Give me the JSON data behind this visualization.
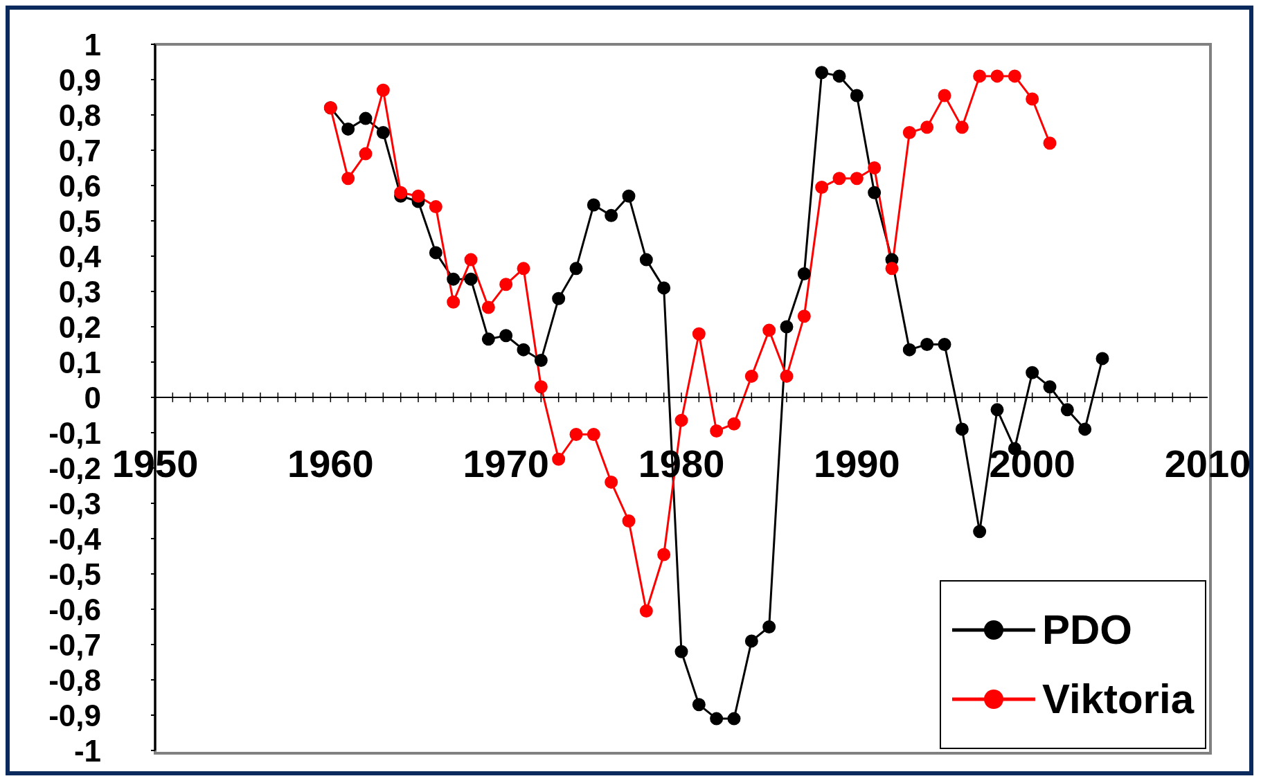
{
  "chart_data": {
    "type": "line",
    "x": [
      1960,
      1961,
      1962,
      1963,
      1964,
      1965,
      1966,
      1967,
      1968,
      1969,
      1970,
      1971,
      1972,
      1973,
      1974,
      1975,
      1976,
      1977,
      1978,
      1979,
      1980,
      1981,
      1982,
      1983,
      1984,
      1985,
      1986,
      1987,
      1988,
      1989,
      1990,
      1991,
      1992,
      1993,
      1994,
      1995,
      1996,
      1997,
      1998,
      1999,
      2000,
      2001,
      2002,
      2003,
      2004
    ],
    "series": [
      {
        "name": "PDO",
        "color": "#000000",
        "values": [
          0.82,
          0.76,
          0.79,
          0.75,
          0.57,
          0.555,
          0.41,
          0.335,
          0.335,
          0.165,
          0.175,
          0.135,
          0.105,
          0.28,
          0.365,
          0.545,
          0.515,
          0.57,
          0.39,
          0.31,
          -0.72,
          -0.87,
          -0.91,
          -0.91,
          -0.69,
          -0.65,
          0.2,
          0.35,
          0.92,
          0.91,
          0.855,
          0.58,
          0.39,
          0.135,
          0.15,
          0.15,
          -0.09,
          -0.38,
          -0.035,
          -0.145,
          0.07,
          0.03,
          -0.035,
          -0.09,
          0.11
        ]
      },
      {
        "name": "Viktoria",
        "color": "#ff0000",
        "values": [
          0.82,
          0.62,
          0.69,
          0.87,
          0.58,
          0.57,
          0.54,
          0.27,
          0.39,
          0.255,
          0.32,
          0.365,
          0.03,
          -0.175,
          -0.105,
          -0.105,
          -0.24,
          -0.35,
          -0.605,
          -0.445,
          -0.065,
          0.18,
          -0.095,
          -0.075,
          0.06,
          0.19,
          0.06,
          0.23,
          0.595,
          0.62,
          0.62,
          0.65,
          0.365,
          0.75,
          0.765,
          0.855,
          0.765,
          0.91,
          0.91,
          0.91,
          0.845,
          0.72,
          null,
          null,
          null
        ]
      }
    ],
    "xlim": [
      1950,
      2010
    ],
    "xticks": [
      1950,
      1960,
      1970,
      1980,
      1990,
      2000,
      2010
    ],
    "ylim": [
      -1,
      1
    ],
    "yticks": [
      {
        "value": -1,
        "label": "-1"
      },
      {
        "value": -0.9,
        "label": "-0,9"
      },
      {
        "value": -0.8,
        "label": "-0,8"
      },
      {
        "value": -0.7,
        "label": "-0,7"
      },
      {
        "value": -0.6,
        "label": "-0,6"
      },
      {
        "value": -0.5,
        "label": "-0,5"
      },
      {
        "value": -0.4,
        "label": "-0,4"
      },
      {
        "value": -0.3,
        "label": "-0,3"
      },
      {
        "value": -0.2,
        "label": "-0,2"
      },
      {
        "value": -0.1,
        "label": "-0,1"
      },
      {
        "value": 0,
        "label": "0"
      },
      {
        "value": 0.1,
        "label": "0,1"
      },
      {
        "value": 0.2,
        "label": "0,2"
      },
      {
        "value": 0.3,
        "label": "0,3"
      },
      {
        "value": 0.4,
        "label": "0,4"
      },
      {
        "value": 0.5,
        "label": "0,5"
      },
      {
        "value": 0.6,
        "label": "0,6"
      },
      {
        "value": 0.7,
        "label": "0,7"
      },
      {
        "value": 0.8,
        "label": "0,8"
      },
      {
        "value": 0.9,
        "label": "0,9"
      },
      {
        "value": 1,
        "label": "1"
      }
    ],
    "marker": "circle",
    "line_style": "solid",
    "legend": "bottom right"
  }
}
